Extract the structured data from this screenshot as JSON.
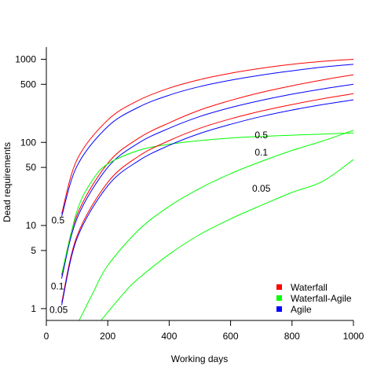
{
  "chart_data": {
    "type": "line",
    "title": "",
    "xlabel": "Working days",
    "ylabel": "Dead requirements",
    "xlim": [
      0,
      1000
    ],
    "ylim": [
      0.72,
      1400
    ],
    "y_scale": "log",
    "grid": false,
    "x_ticks": [
      0,
      200,
      400,
      600,
      800,
      1000
    ],
    "x_tick_labels": [
      "0",
      "200",
      "400",
      "600",
      "800",
      "1000"
    ],
    "y_ticks": [
      1,
      5,
      10,
      50,
      100,
      500,
      1000
    ],
    "y_tick_labels": [
      "1",
      "5",
      "10",
      "50",
      "100",
      "500",
      "1000"
    ],
    "legend": {
      "position": "bottom-right",
      "entries": [
        {
          "label": "Waterfall",
          "color": "#ff0000"
        },
        {
          "label": "Waterfall-Agile",
          "color": "#00ff00"
        },
        {
          "label": "Agile",
          "color": "#0000ff"
        }
      ]
    },
    "annotations": [
      {
        "text": "0.5",
        "x": 38,
        "y": 11.5
      },
      {
        "text": "0.1",
        "x": 36,
        "y": 1.85
      },
      {
        "text": "0.05",
        "x": 40,
        "y": 0.97
      },
      {
        "text": "0.5",
        "x": 700,
        "y": 122
      },
      {
        "text": "0.1",
        "x": 700,
        "y": 76
      },
      {
        "text": "0.05",
        "x": 700,
        "y": 28
      }
    ],
    "series": [
      {
        "color": "#ff0000",
        "points": [
          [
            50,
            13.8
          ],
          [
            100,
            62
          ],
          [
            200,
            186
          ],
          [
            300,
            320
          ],
          [
            400,
            450
          ],
          [
            500,
            570
          ],
          [
            600,
            680
          ],
          [
            700,
            780
          ],
          [
            800,
            870
          ],
          [
            900,
            945
          ],
          [
            1000,
            1000
          ]
        ]
      },
      {
        "color": "#0000ff",
        "points": [
          [
            50,
            12.8
          ],
          [
            100,
            52
          ],
          [
            200,
            155
          ],
          [
            300,
            265
          ],
          [
            400,
            370
          ],
          [
            500,
            470
          ],
          [
            600,
            560
          ],
          [
            700,
            645
          ],
          [
            800,
            725
          ],
          [
            900,
            805
          ],
          [
            1000,
            870
          ]
        ]
      },
      {
        "color": "#ff0000",
        "points": [
          [
            50,
            2.5
          ],
          [
            100,
            13.4
          ],
          [
            200,
            56
          ],
          [
            300,
            112
          ],
          [
            400,
            172
          ],
          [
            500,
            245
          ],
          [
            600,
            320
          ],
          [
            700,
            400
          ],
          [
            800,
            480
          ],
          [
            900,
            565
          ],
          [
            1000,
            650
          ]
        ]
      },
      {
        "color": "#0000ff",
        "points": [
          [
            50,
            2.3
          ],
          [
            100,
            12.2
          ],
          [
            200,
            50
          ],
          [
            300,
            98
          ],
          [
            400,
            148
          ],
          [
            500,
            205
          ],
          [
            600,
            262
          ],
          [
            700,
            320
          ],
          [
            800,
            380
          ],
          [
            900,
            440
          ],
          [
            1000,
            500
          ]
        ]
      },
      {
        "color": "#00ff00",
        "points": [
          [
            50,
            2.6
          ],
          [
            100,
            15
          ],
          [
            150,
            35
          ],
          [
            200,
            55
          ],
          [
            300,
            80
          ],
          [
            400,
            95
          ],
          [
            500,
            105
          ],
          [
            600,
            113
          ],
          [
            700,
            118
          ],
          [
            800,
            122
          ],
          [
            900,
            126
          ],
          [
            1000,
            130
          ]
        ]
      },
      {
        "color": "#ff0000",
        "points": [
          [
            50,
            1.18
          ],
          [
            100,
            7.5
          ],
          [
            200,
            33
          ],
          [
            300,
            68
          ],
          [
            400,
            105
          ],
          [
            500,
            148
          ],
          [
            600,
            192
          ],
          [
            700,
            238
          ],
          [
            800,
            285
          ],
          [
            900,
            335
          ],
          [
            1000,
            385
          ]
        ]
      },
      {
        "color": "#0000ff",
        "points": [
          [
            50,
            1.1
          ],
          [
            100,
            7.0
          ],
          [
            200,
            30
          ],
          [
            300,
            60
          ],
          [
            400,
            92
          ],
          [
            500,
            128
          ],
          [
            600,
            165
          ],
          [
            700,
            205
          ],
          [
            800,
            245
          ],
          [
            900,
            285
          ],
          [
            1000,
            325
          ]
        ]
      },
      {
        "color": "#00ff00",
        "points": [
          [
            107,
            0.72
          ],
          [
            150,
            1.5
          ],
          [
            200,
            3.3
          ],
          [
            300,
            8.8
          ],
          [
            400,
            17
          ],
          [
            500,
            28
          ],
          [
            600,
            42
          ],
          [
            700,
            59
          ],
          [
            800,
            80
          ],
          [
            900,
            104
          ],
          [
            1000,
            140
          ]
        ]
      },
      {
        "color": "#00ff00",
        "points": [
          [
            178,
            0.72
          ],
          [
            250,
            1.5
          ],
          [
            300,
            2.3
          ],
          [
            400,
            4.5
          ],
          [
            500,
            7.8
          ],
          [
            600,
            12
          ],
          [
            700,
            17.5
          ],
          [
            800,
            25
          ],
          [
            900,
            34
          ],
          [
            1000,
            62
          ]
        ]
      }
    ]
  }
}
